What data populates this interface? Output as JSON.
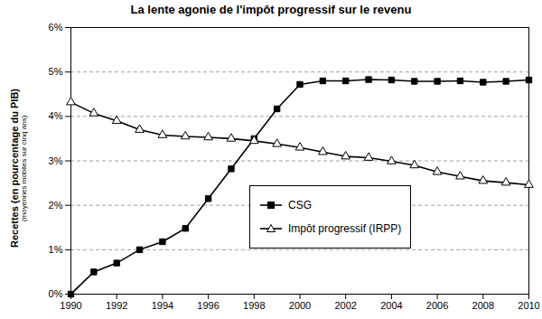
{
  "chart_data": {
    "type": "line",
    "title": "La lente agonie de l'impôt progressif sur le revenu",
    "ylabel": "Recettes (en pourcentage du PIB)",
    "ylabel_note": "(moyennes mobiles sur cinq ans)",
    "x": [
      1990,
      1991,
      1992,
      1993,
      1994,
      1995,
      1996,
      1997,
      1998,
      1999,
      2000,
      2001,
      2002,
      2003,
      2004,
      2005,
      2006,
      2007,
      2008,
      2009,
      2010
    ],
    "series": [
      {
        "name": "CSG",
        "color": "#000000",
        "marker": "square",
        "values": [
          0,
          0.5,
          0.7,
          1.0,
          1.18,
          1.48,
          2.15,
          2.82,
          3.5,
          4.17,
          4.72,
          4.8,
          4.8,
          4.83,
          4.82,
          4.79,
          4.79,
          4.8,
          4.77,
          4.79,
          4.82
        ]
      },
      {
        "name": "Impôt progressif (IRPP)",
        "color": "#000000",
        "marker": "triangle-open",
        "values": [
          4.32,
          4.07,
          3.9,
          3.7,
          3.58,
          3.55,
          3.53,
          3.5,
          3.45,
          3.38,
          3.3,
          3.2,
          3.1,
          3.07,
          2.99,
          2.9,
          2.75,
          2.65,
          2.55,
          2.51,
          2.46
        ]
      }
    ],
    "xlim": [
      1990,
      2010
    ],
    "xticks": [
      1990,
      1992,
      1994,
      1996,
      1998,
      2000,
      2002,
      2004,
      2006,
      2008,
      2010
    ],
    "ylim": [
      0,
      6
    ],
    "yticks": [
      {
        "value": 0,
        "label": "0%"
      },
      {
        "value": 1,
        "label": "1%"
      },
      {
        "value": 2,
        "label": "2%"
      },
      {
        "value": 3,
        "label": "3%"
      },
      {
        "value": 4,
        "label": "4%"
      },
      {
        "value": 5,
        "label": "5%"
      },
      {
        "value": 6,
        "label": "6%"
      }
    ],
    "grid": true,
    "legend": "center"
  }
}
